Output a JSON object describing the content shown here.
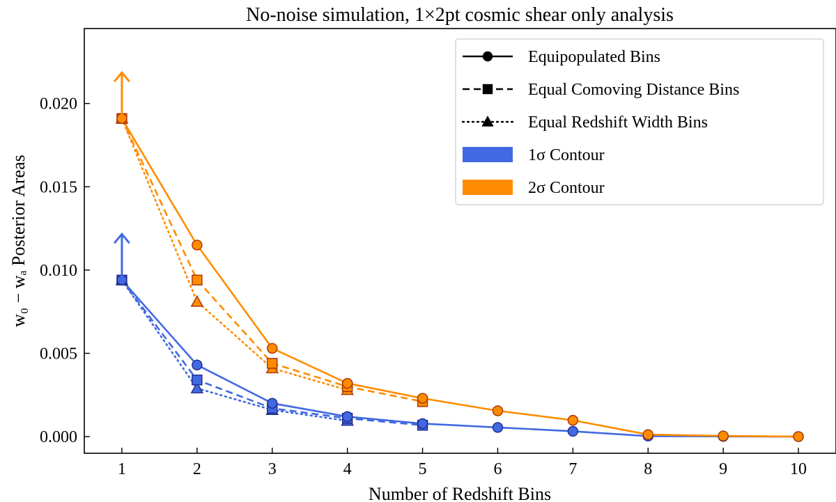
{
  "chart_data": {
    "type": "line",
    "title": "No-noise simulation, 1×2pt cosmic shear only analysis",
    "xlabel": "Number of Redshift Bins",
    "ylabel": "w₀ − wₐ Posterior Areas",
    "xlim": [
      0.5,
      10.5
    ],
    "ylim": [
      -0.001,
      0.0245
    ],
    "xticks": [
      1,
      2,
      3,
      4,
      5,
      6,
      7,
      8,
      9,
      10
    ],
    "yticks": [
      0.0,
      0.005,
      0.01,
      0.015,
      0.02
    ],
    "ytick_labels": [
      "0.000",
      "0.005",
      "0.010",
      "0.015",
      "0.020"
    ],
    "grid": false,
    "legend_position": "top-right",
    "legend": [
      {
        "label": "Equipopulated Bins",
        "kind": "line",
        "dash": "solid",
        "marker": "circle"
      },
      {
        "label": "Equal Comoving Distance Bins",
        "kind": "line",
        "dash": "dashed",
        "marker": "square"
      },
      {
        "label": "Equal Redshift Width Bins",
        "kind": "line",
        "dash": "dotted",
        "marker": "triangle"
      },
      {
        "label": "1σ Contour",
        "kind": "patch",
        "color": "#4169e1"
      },
      {
        "label": "2σ Contour",
        "kind": "patch",
        "color": "#ff8c00"
      }
    ],
    "lower_limit_arrows": [
      {
        "x": 1,
        "y": 0.0094,
        "color": "#4169e1"
      },
      {
        "x": 1,
        "y": 0.0191,
        "color": "#ff8c00"
      }
    ],
    "series": [
      {
        "contour": "1σ",
        "binning": "Equipopulated Bins",
        "color": "#4169e1",
        "edge": "#1f2a8a",
        "dash": "solid",
        "marker": "circle",
        "x": [
          1,
          2,
          3,
          4,
          5,
          6,
          7,
          8,
          9,
          10
        ],
        "y": [
          0.0094,
          0.0043,
          0.002,
          0.0012,
          0.00078,
          0.00055,
          0.00032,
          3e-05,
          1e-05,
          0.0
        ]
      },
      {
        "contour": "1σ",
        "binning": "Equal Comoving Distance Bins",
        "color": "#4169e1",
        "edge": "#1f2a8a",
        "dash": "dashed",
        "marker": "square",
        "x": [
          1,
          2,
          3,
          4,
          5
        ],
        "y": [
          0.0094,
          0.0034,
          0.0017,
          0.0011,
          0.00068
        ]
      },
      {
        "contour": "1σ",
        "binning": "Equal Redshift Width Bins",
        "color": "#4169e1",
        "edge": "#1f2a8a",
        "dash": "dotted",
        "marker": "triangle",
        "x": [
          1,
          2,
          3,
          4
        ],
        "y": [
          0.0094,
          0.0029,
          0.0016,
          0.00095
        ]
      },
      {
        "contour": "2σ",
        "binning": "Equipopulated Bins",
        "color": "#ff8c00",
        "edge": "#a83200",
        "dash": "solid",
        "marker": "circle",
        "x": [
          1,
          2,
          3,
          4,
          5,
          6,
          7,
          8,
          9,
          10
        ],
        "y": [
          0.0191,
          0.0115,
          0.0053,
          0.0032,
          0.0023,
          0.00155,
          0.00098,
          0.00012,
          4e-05,
          0.0
        ]
      },
      {
        "contour": "2σ",
        "binning": "Equal Comoving Distance Bins",
        "color": "#ff8c00",
        "edge": "#a83200",
        "dash": "dashed",
        "marker": "square",
        "x": [
          1,
          2,
          3,
          4,
          5
        ],
        "y": [
          0.0191,
          0.0094,
          0.0044,
          0.003,
          0.0021
        ]
      },
      {
        "contour": "2σ",
        "binning": "Equal Redshift Width Bins",
        "color": "#ff8c00",
        "edge": "#a83200",
        "dash": "dotted",
        "marker": "triangle",
        "x": [
          1,
          2,
          3,
          4
        ],
        "y": [
          0.0191,
          0.0081,
          0.0041,
          0.0028
        ]
      }
    ]
  }
}
